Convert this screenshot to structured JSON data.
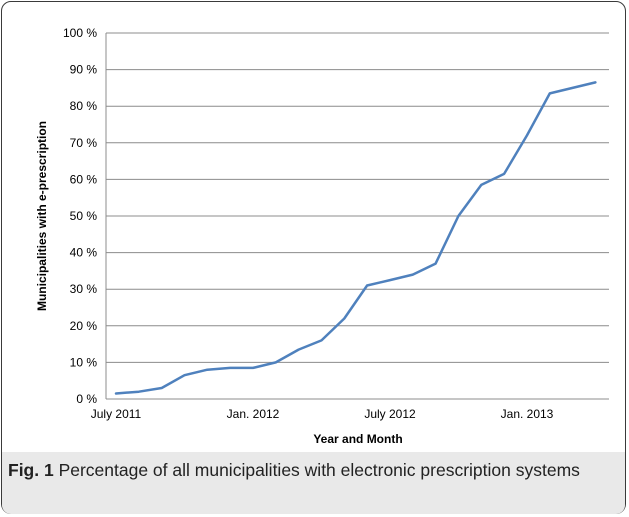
{
  "chart_data": {
    "type": "line",
    "xlabel": "Year and Month",
    "ylabel": "Municipalities with e-prescription",
    "ylim": [
      0,
      100
    ],
    "y_ticks": [
      "0 %",
      "10 %",
      "20 %",
      "30 %",
      "40 %",
      "50 %",
      "60 %",
      "70 %",
      "80 %",
      "90 %",
      "100 %"
    ],
    "x_tick_labels": [
      "July 2011",
      "Jan. 2012",
      "July 2012",
      "Jan. 2013"
    ],
    "grid": "horizontal",
    "legend": "none",
    "line_color": "#4f81bd",
    "series": [
      {
        "x": [
          "2011-07",
          "2011-08",
          "2011-09",
          "2011-10",
          "2011-11",
          "2011-12",
          "2012-01",
          "2012-02",
          "2012-03",
          "2012-04",
          "2012-05",
          "2012-06",
          "2012-07",
          "2012-08",
          "2012-09",
          "2012-10",
          "2012-11",
          "2012-12",
          "2013-01",
          "2013-02",
          "2013-03",
          "2013-04"
        ],
        "values": [
          1.5,
          2.0,
          3.0,
          6.5,
          8.0,
          8.5,
          8.5,
          10.0,
          13.5,
          16.0,
          22.0,
          31.0,
          32.5,
          34.0,
          37.0,
          50.0,
          58.5,
          61.5,
          72.0,
          83.5,
          85.0,
          86.5
        ]
      }
    ]
  },
  "caption": {
    "label": "Fig. 1",
    "text": " Percentage of all municipalities with electronic prescription systems"
  }
}
